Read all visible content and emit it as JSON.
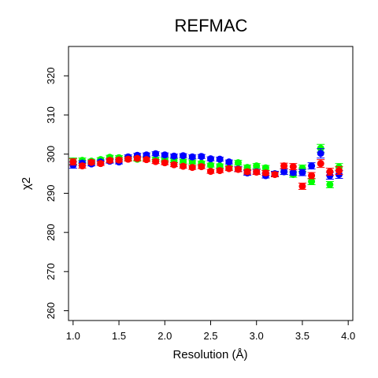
{
  "chart_data": {
    "type": "scatter",
    "title": "REFMAC",
    "xlabel": "Resolution (Å)",
    "ylabel": "χ2",
    "xlim": [
      0.95,
      4.05
    ],
    "ylim": [
      257.5,
      327.5
    ],
    "x_ticks": [
      1.0,
      1.5,
      2.0,
      2.5,
      3.0,
      3.5,
      4.0
    ],
    "x_tick_labels": [
      "1.0",
      "1.5",
      "2.0",
      "2.5",
      "3.0",
      "3.5",
      "4.0"
    ],
    "y_ticks": [
      260,
      270,
      280,
      290,
      300,
      310,
      320
    ],
    "y_tick_labels": [
      "260",
      "270",
      "280",
      "290",
      "300",
      "310",
      "320"
    ],
    "grid": false,
    "legend": "none",
    "error_bars": true,
    "series": [
      {
        "color": "#00ff00",
        "x": [
          1.0,
          1.1,
          1.2,
          1.3,
          1.4,
          1.5,
          1.6,
          1.7,
          1.8,
          1.9,
          2.0,
          2.1,
          2.2,
          2.3,
          2.4,
          2.5,
          2.6,
          2.7,
          2.8,
          2.9,
          3.0,
          3.1,
          3.2,
          3.3,
          3.4,
          3.5,
          3.6,
          3.7,
          3.8,
          3.9
        ],
        "y": [
          298.2,
          298.4,
          298.2,
          298.6,
          299.2,
          299.1,
          298.9,
          298.7,
          298.9,
          298.7,
          298.5,
          298.4,
          298.2,
          298.0,
          297.7,
          297.2,
          297.0,
          296.6,
          297.8,
          296.6,
          297.0,
          296.5,
          295.0,
          295.5,
          294.8,
          296.4,
          293.0,
          301.5,
          292.2,
          296.7
        ],
        "err": [
          0.8,
          0.6,
          0.5,
          0.5,
          0.5,
          0.5,
          0.5,
          0.5,
          0.5,
          0.5,
          0.5,
          0.5,
          0.5,
          0.5,
          0.5,
          0.5,
          0.5,
          0.5,
          0.6,
          0.6,
          0.6,
          0.6,
          0.6,
          0.7,
          0.7,
          0.8,
          0.8,
          1.0,
          0.8,
          0.9
        ]
      },
      {
        "color": "#0000ff",
        "x": [
          1.0,
          1.1,
          1.2,
          1.3,
          1.4,
          1.5,
          1.6,
          1.7,
          1.8,
          1.9,
          2.0,
          2.1,
          2.2,
          2.3,
          2.4,
          2.5,
          2.6,
          2.7,
          2.8,
          2.9,
          3.0,
          3.1,
          3.2,
          3.3,
          3.4,
          3.5,
          3.6,
          3.7,
          3.8,
          3.9
        ],
        "y": [
          297.2,
          297.7,
          297.5,
          298.0,
          298.2,
          298.0,
          299.3,
          299.7,
          299.8,
          300.1,
          299.8,
          299.5,
          299.6,
          299.3,
          299.4,
          298.8,
          298.7,
          298.0,
          296.2,
          295.2,
          295.5,
          294.5,
          295.0,
          295.5,
          295.3,
          295.3,
          297.0,
          300.2,
          294.5,
          294.8
        ],
        "err": [
          0.8,
          0.6,
          0.5,
          0.5,
          0.5,
          0.5,
          0.5,
          0.5,
          0.5,
          0.5,
          0.5,
          0.5,
          0.5,
          0.5,
          0.5,
          0.5,
          0.5,
          0.5,
          0.6,
          0.6,
          0.6,
          0.6,
          0.6,
          0.7,
          0.7,
          0.8,
          0.8,
          1.2,
          0.9,
          1.0
        ]
      },
      {
        "color": "#ff0000",
        "x": [
          1.0,
          1.1,
          1.2,
          1.3,
          1.4,
          1.5,
          1.6,
          1.7,
          1.8,
          1.9,
          2.0,
          2.1,
          2.2,
          2.3,
          2.4,
          2.5,
          2.6,
          2.7,
          2.8,
          2.9,
          3.0,
          3.1,
          3.2,
          3.3,
          3.4,
          3.5,
          3.6,
          3.7,
          3.8,
          3.9
        ],
        "y": [
          298.0,
          297.0,
          297.9,
          297.6,
          298.4,
          298.5,
          298.7,
          298.9,
          298.6,
          298.1,
          297.8,
          297.3,
          296.9,
          296.6,
          296.8,
          295.6,
          295.8,
          296.3,
          296.1,
          295.5,
          295.4,
          295.2,
          294.8,
          297.0,
          296.8,
          291.8,
          294.5,
          297.6,
          295.5,
          295.8
        ],
        "err": [
          0.8,
          0.6,
          0.5,
          0.5,
          0.5,
          0.5,
          0.5,
          0.5,
          0.5,
          0.5,
          0.5,
          0.5,
          0.5,
          0.5,
          0.5,
          0.5,
          0.5,
          0.5,
          0.6,
          0.6,
          0.6,
          0.6,
          0.6,
          0.7,
          0.8,
          0.8,
          0.8,
          1.0,
          0.9,
          1.0
        ]
      }
    ]
  }
}
